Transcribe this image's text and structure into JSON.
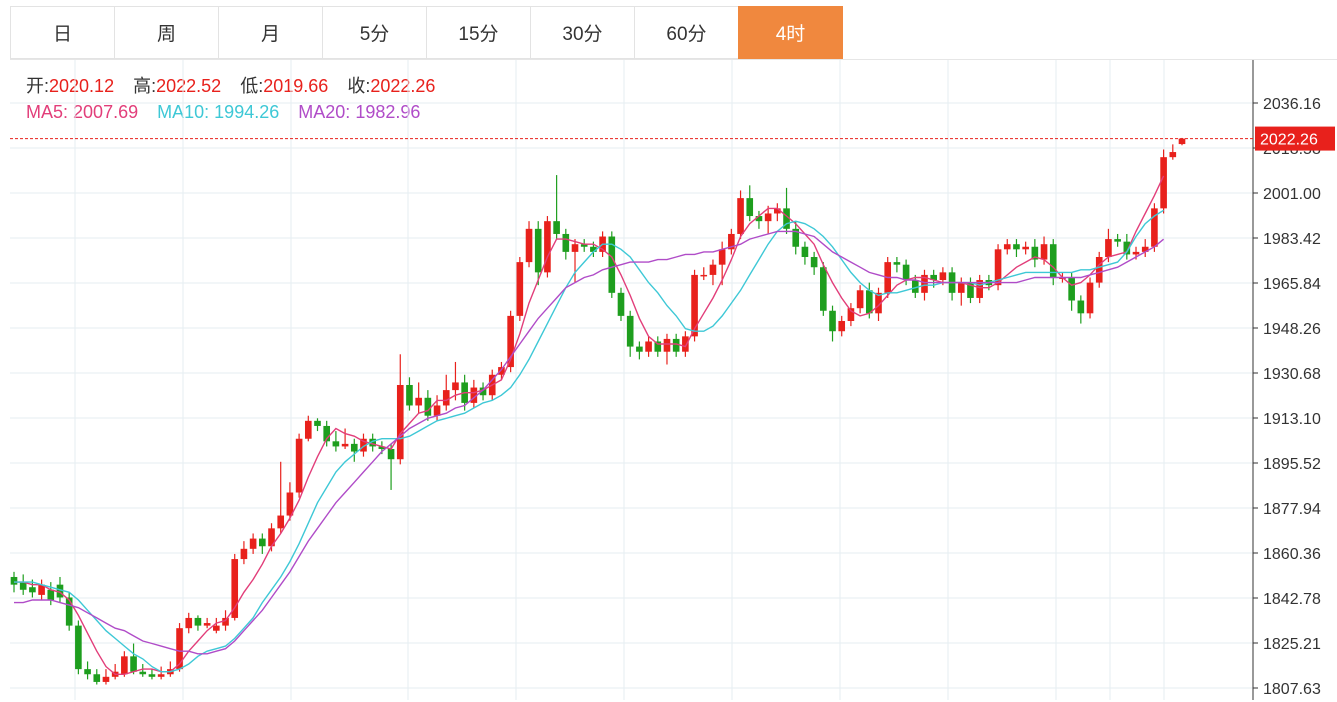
{
  "tabs": [
    {
      "label": "日",
      "active": false
    },
    {
      "label": "周",
      "active": false
    },
    {
      "label": "月",
      "active": false
    },
    {
      "label": "5分",
      "active": false
    },
    {
      "label": "15分",
      "active": false
    },
    {
      "label": "30分",
      "active": false
    },
    {
      "label": "60分",
      "active": false
    },
    {
      "label": "4时",
      "active": true
    }
  ],
  "ohlc": {
    "open_label": "开:",
    "open": "2020.12",
    "high_label": "高:",
    "high": "2022.52",
    "low_label": "低:",
    "low": "2019.66",
    "close_label": "收:",
    "close": "2022.26"
  },
  "ma": {
    "ma5_label": "MA5:",
    "ma5": "2007.69",
    "ma10_label": "MA10:",
    "ma10": "1994.26",
    "ma20_label": "MA20:",
    "ma20": "1982.96"
  },
  "colors": {
    "up": "#e8211c",
    "down": "#1e9e1e",
    "ma5": "#e23e7a",
    "ma10": "#3ec8d6",
    "ma20": "#b04cc8",
    "grid": "#e6eef2",
    "accent": "#f0883e",
    "price_tag": "#e8211c"
  },
  "chart_data": {
    "type": "candlestick",
    "title": "",
    "price_tag": "2022.26",
    "ylim": [
      1805,
      2048
    ],
    "ytick_labels": [
      "2036.16",
      "2018.58",
      "2001.00",
      "1983.42",
      "1965.84",
      "1948.26",
      "1930.68",
      "1913.10",
      "1895.52",
      "1877.94",
      "1860.36",
      "1842.78",
      "1825.21",
      "1807.63"
    ],
    "candles": [
      [
        1851,
        1848,
        1853,
        1845
      ],
      [
        1849,
        1846,
        1852,
        1844
      ],
      [
        1847,
        1845,
        1850,
        1843
      ],
      [
        1844,
        1848,
        1850,
        1842
      ],
      [
        1846,
        1842,
        1849,
        1840
      ],
      [
        1848,
        1843,
        1851,
        1841
      ],
      [
        1843,
        1832,
        1845,
        1830
      ],
      [
        1832,
        1815,
        1834,
        1813
      ],
      [
        1815,
        1813,
        1818,
        1811
      ],
      [
        1813,
        1810,
        1815,
        1809
      ],
      [
        1810,
        1812,
        1815,
        1809
      ],
      [
        1812,
        1814,
        1817,
        1811
      ],
      [
        1813,
        1820,
        1822,
        1812
      ],
      [
        1820,
        1814,
        1825,
        1813
      ],
      [
        1814,
        1813,
        1817,
        1812
      ],
      [
        1813,
        1812,
        1815,
        1811
      ],
      [
        1812,
        1813,
        1816,
        1811
      ],
      [
        1813,
        1815,
        1818,
        1812
      ],
      [
        1815,
        1831,
        1833,
        1814
      ],
      [
        1831,
        1835,
        1837,
        1829
      ],
      [
        1835,
        1832,
        1836,
        1830
      ],
      [
        1832,
        1833,
        1835,
        1831
      ],
      [
        1830,
        1832,
        1835,
        1829
      ],
      [
        1832,
        1835,
        1838,
        1830
      ],
      [
        1835,
        1858,
        1860,
        1834
      ],
      [
        1858,
        1862,
        1865,
        1856
      ],
      [
        1862,
        1866,
        1868,
        1860
      ],
      [
        1866,
        1863,
        1868,
        1860
      ],
      [
        1863,
        1870,
        1872,
        1861
      ],
      [
        1870,
        1875,
        1896,
        1868
      ],
      [
        1875,
        1884,
        1888,
        1873
      ],
      [
        1884,
        1905,
        1907,
        1882
      ],
      [
        1905,
        1912,
        1914,
        1904
      ],
      [
        1912,
        1910,
        1913,
        1908
      ],
      [
        1910,
        1904,
        1912,
        1902
      ],
      [
        1904,
        1902,
        1908,
        1900
      ],
      [
        1902,
        1903,
        1909,
        1901
      ],
      [
        1903,
        1900,
        1905,
        1896
      ],
      [
        1900,
        1905,
        1907,
        1898
      ],
      [
        1905,
        1902,
        1907,
        1900
      ],
      [
        1902,
        1901,
        1904,
        1899
      ],
      [
        1901,
        1897,
        1903,
        1885
      ],
      [
        1897,
        1926,
        1938,
        1895
      ],
      [
        1926,
        1918,
        1929,
        1916
      ],
      [
        1918,
        1921,
        1927,
        1915
      ],
      [
        1921,
        1914,
        1924,
        1912
      ],
      [
        1914,
        1918,
        1922,
        1912
      ],
      [
        1918,
        1924,
        1930,
        1916
      ],
      [
        1924,
        1927,
        1935,
        1920
      ],
      [
        1927,
        1919,
        1930,
        1916
      ],
      [
        1919,
        1925,
        1928,
        1917
      ],
      [
        1925,
        1922,
        1927,
        1920
      ],
      [
        1922,
        1930,
        1932,
        1920
      ],
      [
        1930,
        1933,
        1935,
        1928
      ],
      [
        1933,
        1953,
        1955,
        1931
      ],
      [
        1953,
        1974,
        1976,
        1951
      ],
      [
        1974,
        1987,
        1990,
        1972
      ],
      [
        1987,
        1970,
        1990,
        1965
      ],
      [
        1970,
        1990,
        1992,
        1968
      ],
      [
        1990,
        1985,
        2008,
        1983
      ],
      [
        1985,
        1978,
        1987,
        1975
      ],
      [
        1978,
        1981,
        1983,
        1966
      ],
      [
        1981,
        1980,
        1983,
        1978
      ],
      [
        1980,
        1978,
        1982,
        1976
      ],
      [
        1978,
        1984,
        1986,
        1976
      ],
      [
        1984,
        1962,
        1986,
        1960
      ],
      [
        1962,
        1953,
        1964,
        1951
      ],
      [
        1953,
        1941,
        1955,
        1937
      ],
      [
        1941,
        1939,
        1943,
        1936
      ],
      [
        1939,
        1943,
        1945,
        1937
      ],
      [
        1943,
        1939,
        1945,
        1937
      ],
      [
        1939,
        1944,
        1946,
        1934
      ],
      [
        1944,
        1939,
        1946,
        1937
      ],
      [
        1939,
        1945,
        1947,
        1937
      ],
      [
        1945,
        1969,
        1971,
        1943
      ],
      [
        1969,
        1969,
        1972,
        1967
      ],
      [
        1969,
        1973,
        1975,
        1965
      ],
      [
        1973,
        1979,
        1982,
        1965
      ],
      [
        1979,
        1985,
        1987,
        1977
      ],
      [
        1985,
        1999,
        2002,
        1983
      ],
      [
        1999,
        1992,
        2004,
        1990
      ],
      [
        1992,
        1990,
        1994,
        1987
      ],
      [
        1990,
        1993,
        1996,
        1985
      ],
      [
        1993,
        1995,
        1997,
        1990
      ],
      [
        1995,
        1987,
        2003,
        1985
      ],
      [
        1987,
        1980,
        1990,
        1977
      ],
      [
        1980,
        1976,
        1982,
        1973
      ],
      [
        1976,
        1972,
        1978,
        1969
      ],
      [
        1972,
        1955,
        1974,
        1953
      ],
      [
        1955,
        1947,
        1957,
        1943
      ],
      [
        1947,
        1951,
        1953,
        1945
      ],
      [
        1951,
        1956,
        1958,
        1949
      ],
      [
        1956,
        1963,
        1965,
        1954
      ],
      [
        1963,
        1954,
        1966,
        1952
      ],
      [
        1954,
        1962,
        1964,
        1951
      ],
      [
        1962,
        1974,
        1976,
        1960
      ],
      [
        1974,
        1973,
        1976,
        1970
      ],
      [
        1973,
        1967,
        1975,
        1965
      ],
      [
        1967,
        1962,
        1969,
        1960
      ],
      [
        1962,
        1969,
        1971,
        1959
      ],
      [
        1969,
        1967,
        1971,
        1964
      ],
      [
        1967,
        1970,
        1972,
        1965
      ],
      [
        1970,
        1962,
        1972,
        1959
      ],
      [
        1962,
        1966,
        1968,
        1957
      ],
      [
        1966,
        1960,
        1968,
        1958
      ],
      [
        1960,
        1967,
        1969,
        1958
      ],
      [
        1967,
        1965,
        1969,
        1963
      ],
      [
        1965,
        1979,
        1981,
        1963
      ],
      [
        1979,
        1981,
        1983,
        1977
      ],
      [
        1981,
        1979,
        1983,
        1976
      ],
      [
        1979,
        1980,
        1982,
        1977
      ],
      [
        1980,
        1975,
        1983,
        1972
      ],
      [
        1975,
        1981,
        1984,
        1973
      ],
      [
        1981,
        1968,
        1983,
        1965
      ],
      [
        1968,
        1968,
        1970,
        1966
      ],
      [
        1968,
        1959,
        1970,
        1955
      ],
      [
        1959,
        1954,
        1961,
        1950
      ],
      [
        1954,
        1966,
        1968,
        1952
      ],
      [
        1966,
        1976,
        1978,
        1964
      ],
      [
        1976,
        1983,
        1987,
        1974
      ],
      [
        1983,
        1982,
        1985,
        1980
      ],
      [
        1982,
        1977,
        1985,
        1975
      ],
      [
        1977,
        1978,
        1980,
        1975
      ],
      [
        1978,
        1980,
        1983,
        1976
      ],
      [
        1980,
        1995,
        1997,
        1978
      ],
      [
        1995,
        2015,
        2018,
        1993
      ],
      [
        2015,
        2017,
        2020,
        2014
      ],
      [
        2020.12,
        2022.26,
        2022.52,
        2019.66
      ]
    ],
    "candle_encoding": [
      "open",
      "close",
      "high",
      "low"
    ],
    "series": [
      {
        "name": "MA5",
        "values": [
          1849,
          1849,
          1848,
          1848,
          1846,
          1845,
          1842,
          1836,
          1829,
          1822,
          1816,
          1813,
          1813,
          1814,
          1815,
          1815,
          1814,
          1814,
          1817,
          1822,
          1826,
          1830,
          1833,
          1834,
          1839,
          1845,
          1850,
          1856,
          1863,
          1868,
          1874,
          1881,
          1890,
          1898,
          1905,
          1909,
          1907,
          1906,
          1904,
          1903,
          1902,
          1901,
          1907,
          1911,
          1915,
          1916,
          1920,
          1920,
          1922,
          1923,
          1923,
          1924,
          1926,
          1928,
          1936,
          1946,
          1958,
          1967,
          1976,
          1983,
          1983,
          1982,
          1981,
          1981,
          1979,
          1976,
          1969,
          1961,
          1952,
          1945,
          1942,
          1942,
          1942,
          1941,
          1948,
          1954,
          1960,
          1967,
          1975,
          1984,
          1989,
          1992,
          1995,
          1995,
          1992,
          1989,
          1985,
          1981,
          1973,
          1966,
          1960,
          1955,
          1953,
          1954,
          1957,
          1961,
          1965,
          1967,
          1968,
          1968,
          1967,
          1966,
          1966,
          1966,
          1965,
          1964,
          1964,
          1966,
          1969,
          1972,
          1974,
          1976,
          1975,
          1972,
          1968,
          1965,
          1966,
          1969,
          1973,
          1976,
          1977,
          1978,
          1986,
          1993,
          2000,
          2007.69
        ]
      },
      {
        "name": "MA10",
        "values": [
          1849,
          1849,
          1849,
          1848,
          1847,
          1846,
          1845,
          1842,
          1838,
          1834,
          1830,
          1827,
          1824,
          1821,
          1819,
          1816,
          1814,
          1814,
          1815,
          1817,
          1820,
          1822,
          1823,
          1824,
          1827,
          1831,
          1835,
          1841,
          1846,
          1851,
          1857,
          1864,
          1872,
          1880,
          1886,
          1892,
          1896,
          1899,
          1902,
          1904,
          1905,
          1905,
          1905,
          1906,
          1908,
          1910,
          1912,
          1913,
          1914,
          1915,
          1917,
          1919,
          1920,
          1922,
          1925,
          1930,
          1936,
          1943,
          1950,
          1957,
          1964,
          1970,
          1974,
          1978,
          1981,
          1981,
          1979,
          1976,
          1971,
          1966,
          1962,
          1957,
          1953,
          1948,
          1947,
          1947,
          1949,
          1953,
          1958,
          1963,
          1969,
          1975,
          1981,
          1986,
          1989,
          1990,
          1989,
          1987,
          1984,
          1980,
          1975,
          1970,
          1966,
          1963,
          1961,
          1962,
          1962,
          1963,
          1964,
          1965,
          1965,
          1966,
          1966,
          1966,
          1966,
          1965,
          1966,
          1967,
          1968,
          1969,
          1970,
          1970,
          1970,
          1970,
          1970,
          1970,
          1971,
          1971,
          1972,
          1973,
          1974,
          1978,
          1984,
          1989,
          1992,
          1994.26
        ]
      },
      {
        "name": "MA20",
        "values": [
          1841,
          1841,
          1842,
          1842,
          1842,
          1841,
          1840,
          1839,
          1837,
          1835,
          1833,
          1831,
          1830,
          1828,
          1826,
          1825,
          1824,
          1823,
          1822,
          1822,
          1821,
          1821,
          1822,
          1823,
          1826,
          1830,
          1834,
          1838,
          1843,
          1848,
          1853,
          1859,
          1865,
          1870,
          1875,
          1880,
          1884,
          1888,
          1892,
          1896,
          1900,
          1903,
          1906,
          1909,
          1911,
          1913,
          1914,
          1915,
          1917,
          1918,
          1921,
          1924,
          1928,
          1932,
          1937,
          1942,
          1947,
          1952,
          1956,
          1960,
          1964,
          1966,
          1968,
          1969,
          1971,
          1972,
          1973,
          1974,
          1974,
          1974,
          1975,
          1975,
          1976,
          1977,
          1977,
          1978,
          1978,
          1979,
          1980,
          1981,
          1983,
          1984,
          1985,
          1986,
          1986,
          1986,
          1985,
          1984,
          1981,
          1978,
          1976,
          1974,
          1972,
          1970,
          1969,
          1968,
          1968,
          1967,
          1967,
          1966,
          1966,
          1966,
          1966,
          1966,
          1966,
          1966,
          1966,
          1966,
          1966,
          1966,
          1967,
          1968,
          1968,
          1968,
          1968,
          1968,
          1968,
          1969,
          1970,
          1971,
          1972,
          1974,
          1976,
          1978,
          1980,
          1982.96
        ]
      }
    ],
    "legend": "top-left",
    "grid": true,
    "xlabel": "",
    "ylabel": ""
  }
}
